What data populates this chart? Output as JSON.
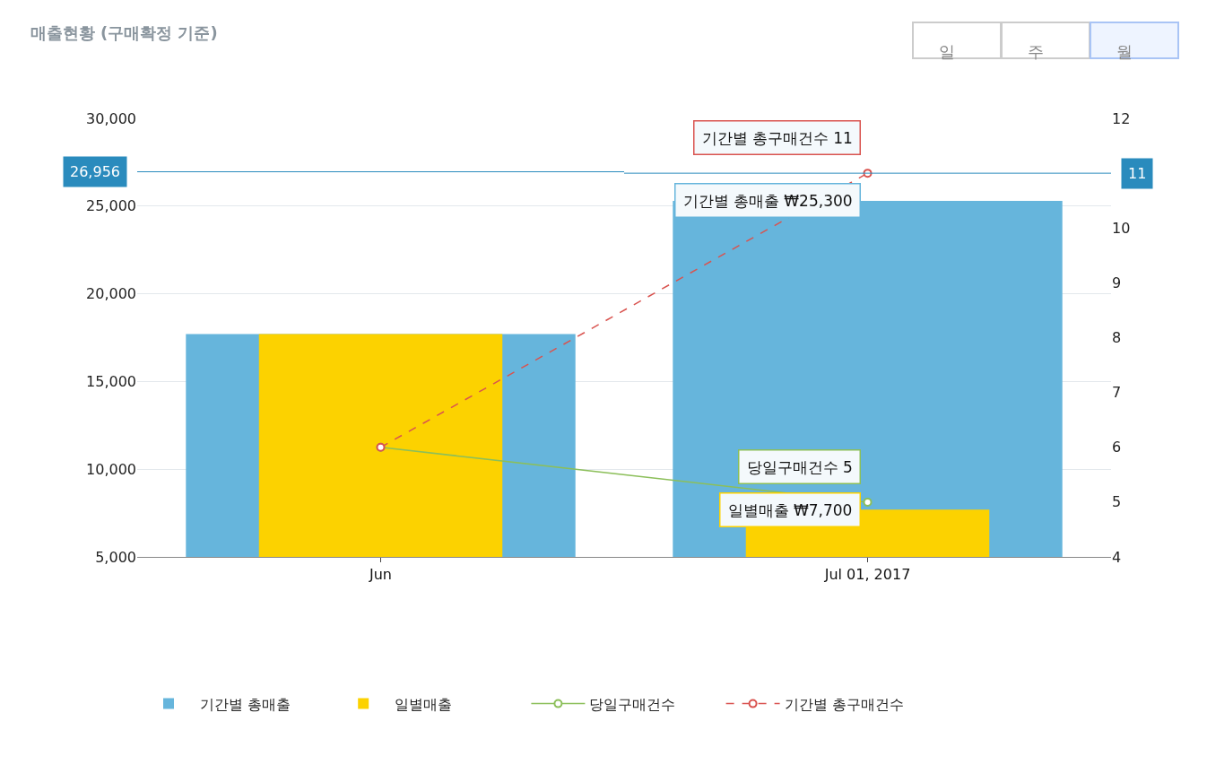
{
  "chart_data": {
    "type": "bar",
    "title": "매출현황 (구매확정 기준)",
    "categories": [
      "Jun",
      "Jul 01, 2017"
    ],
    "series": [
      {
        "name": "기간별 총매출",
        "color": "#66b5dc",
        "values": [
          17700,
          25300
        ]
      },
      {
        "name": "일별매출",
        "color": "#fcd200",
        "values": [
          17700,
          7700
        ]
      },
      {
        "name": "당일구매건수",
        "type": "line",
        "axis": "y2",
        "color": "#8cbf5a",
        "values": [
          6,
          5
        ],
        "marker": "circle",
        "line_style": "solid"
      },
      {
        "name": "기간별 총구매건수",
        "type": "line",
        "axis": "y2",
        "color": "#d9534f",
        "values": [
          6,
          11
        ],
        "marker": "circle",
        "line_style": "dashed"
      }
    ],
    "ylim": [
      5000,
      30000
    ],
    "yticks": [
      {
        "value": 5000,
        "label": "5,000"
      },
      {
        "value": 10000,
        "label": "10,000"
      },
      {
        "value": 15000,
        "label": "15,000"
      },
      {
        "value": 20000,
        "label": "20,000"
      },
      {
        "value": 25000,
        "label": "25,000"
      },
      {
        "value": 30000,
        "label": "30,000"
      }
    ],
    "y2lim": [
      4,
      12
    ],
    "y2ticks": [
      4,
      5,
      6,
      7,
      8,
      9,
      10,
      12
    ],
    "ref_lines": [
      {
        "axis": "y",
        "value": 26956,
        "label": "26,956",
        "color": "#2a8bbd"
      },
      {
        "axis": "y2",
        "value": 11,
        "label": "11",
        "color": "#2a8bbd"
      }
    ],
    "annotations": [
      {
        "text": "기간별 총매출 ₩25,300",
        "x": "Jul 01, 2017",
        "y": 25300
      },
      {
        "text": "일별매출 ₩7,700",
        "x": "Jul 01, 2017",
        "y": 7700
      },
      "당일구매건수 5",
      "기간별 총구매건수 11",
      "일",
      "주",
      "월"
    ],
    "grid": "y",
    "legend": "bottom"
  }
}
